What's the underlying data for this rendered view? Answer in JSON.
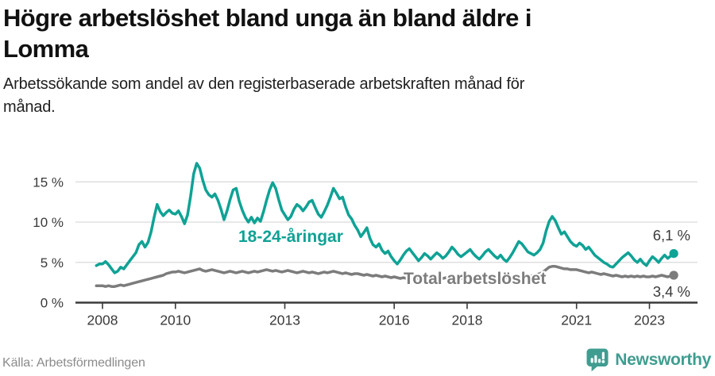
{
  "header": {
    "title_lines": [
      "Högre arbetslöshet bland unga än bland äldre i",
      "Lomma"
    ],
    "subtitle_lines": [
      "Arbetssökande som andel av den registerbaserade arbetskraften månad för",
      "månad."
    ]
  },
  "chart_data": {
    "type": "line",
    "title": "Högre arbetslöshet bland unga än bland äldre i Lomma",
    "subtitle": "Arbetssökande som andel av den registerbaserade arbetskraften månad för månad.",
    "x_unit": "month",
    "x_range": [
      "2007-11",
      "2023-09"
    ],
    "x_ticks": [
      2008,
      2010,
      2013,
      2016,
      2018,
      2021,
      2023
    ],
    "y_ticks": [
      0,
      5,
      10,
      15
    ],
    "y_suffix": " %",
    "ylim": [
      0,
      18
    ],
    "grid": "horizontal",
    "legend_position": "inline-labels",
    "series": [
      {
        "name": "18-24-åringar",
        "color": "#0fa295",
        "end_label": "6,1 %",
        "end_value": 6.1,
        "values": [
          4.6,
          4.8,
          4.8,
          5.1,
          4.7,
          4.2,
          3.7,
          3.9,
          4.4,
          4.2,
          4.7,
          5.2,
          5.7,
          6.2,
          7.2,
          7.6,
          6.9,
          7.5,
          8.8,
          10.6,
          12.2,
          11.3,
          10.8,
          11.2,
          11.5,
          11.1,
          11.0,
          11.4,
          10.7,
          9.8,
          10.9,
          13.2,
          16.0,
          17.3,
          16.7,
          15.2,
          14.0,
          13.4,
          13.1,
          13.5,
          12.7,
          11.6,
          10.3,
          11.4,
          12.8,
          14.0,
          14.2,
          12.6,
          11.5,
          10.6,
          10.0,
          10.6,
          9.9,
          10.5,
          10.1,
          11.3,
          12.7,
          14.0,
          14.9,
          14.2,
          12.8,
          11.5,
          10.9,
          10.3,
          10.7,
          11.6,
          12.2,
          11.9,
          11.4,
          11.9,
          12.5,
          12.7,
          11.8,
          11.0,
          10.6,
          11.3,
          12.1,
          13.1,
          14.2,
          13.6,
          12.9,
          13.1,
          11.9,
          10.9,
          10.4,
          9.6,
          9.0,
          8.2,
          8.7,
          9.3,
          8.0,
          7.2,
          6.9,
          7.3,
          6.5,
          6.1,
          6.4,
          5.7,
          5.2,
          4.8,
          5.3,
          5.9,
          6.4,
          6.7,
          6.2,
          5.7,
          5.2,
          5.6,
          6.1,
          5.8,
          5.4,
          5.8,
          6.2,
          5.9,
          5.5,
          5.8,
          6.3,
          6.9,
          6.5,
          6.0,
          5.7,
          6.0,
          6.3,
          6.6,
          6.1,
          5.7,
          5.4,
          5.8,
          6.3,
          6.6,
          6.2,
          5.8,
          5.5,
          5.9,
          5.4,
          5.1,
          5.6,
          6.2,
          6.9,
          7.6,
          7.3,
          6.8,
          6.3,
          6.1,
          5.9,
          6.2,
          6.6,
          7.4,
          8.9,
          10.1,
          10.7,
          10.2,
          9.3,
          8.5,
          8.8,
          8.2,
          7.6,
          7.2,
          7.0,
          7.4,
          7.1,
          6.6,
          6.9,
          6.4,
          5.9,
          5.6,
          5.3,
          5.0,
          4.8,
          4.5,
          4.4,
          4.8,
          5.2,
          5.6,
          5.9,
          6.2,
          5.8,
          5.3,
          5.0,
          5.4,
          4.9,
          4.6,
          5.2,
          5.7,
          5.4,
          5.0,
          5.5,
          5.9,
          5.5,
          5.8,
          6.1
        ]
      },
      {
        "name": "Total arbetslöshet",
        "color": "#7c7c7c",
        "end_label": "3,4 %",
        "end_value": 3.4,
        "values": [
          2.1,
          2.1,
          2.1,
          2.0,
          2.1,
          2.0,
          2.0,
          2.1,
          2.2,
          2.1,
          2.2,
          2.3,
          2.4,
          2.5,
          2.6,
          2.7,
          2.8,
          2.9,
          3.0,
          3.1,
          3.2,
          3.3,
          3.4,
          3.6,
          3.7,
          3.8,
          3.8,
          3.9,
          3.8,
          3.7,
          3.8,
          3.9,
          4.0,
          4.1,
          4.2,
          4.0,
          3.9,
          4.0,
          4.1,
          4.0,
          3.9,
          3.8,
          3.7,
          3.8,
          3.9,
          3.8,
          3.7,
          3.8,
          3.9,
          3.8,
          3.7,
          3.8,
          3.9,
          3.8,
          3.9,
          4.0,
          4.1,
          4.0,
          3.9,
          4.0,
          3.9,
          3.8,
          3.9,
          4.0,
          3.9,
          3.8,
          3.7,
          3.8,
          3.9,
          3.8,
          3.7,
          3.8,
          3.7,
          3.6,
          3.7,
          3.8,
          3.7,
          3.8,
          3.9,
          3.8,
          3.7,
          3.6,
          3.7,
          3.6,
          3.5,
          3.6,
          3.6,
          3.5,
          3.4,
          3.5,
          3.4,
          3.3,
          3.4,
          3.3,
          3.2,
          3.3,
          3.2,
          3.1,
          3.2,
          3.1,
          3.0,
          3.1,
          3.0,
          2.9,
          3.0,
          3.1,
          3.0,
          2.9,
          3.0,
          3.1,
          3.0,
          3.1,
          3.0,
          2.9,
          3.0,
          3.1,
          3.0,
          3.1,
          3.0,
          2.9,
          3.0,
          2.9,
          3.0,
          2.9,
          2.8,
          2.9,
          3.0,
          2.9,
          2.8,
          2.9,
          3.0,
          2.9,
          3.0,
          3.1,
          3.0,
          3.1,
          3.2,
          3.1,
          3.2,
          3.3,
          3.2,
          3.3,
          3.2,
          3.3,
          3.4,
          3.5,
          3.6,
          3.8,
          4.1,
          4.4,
          4.5,
          4.5,
          4.4,
          4.3,
          4.2,
          4.2,
          4.1,
          4.1,
          4.1,
          4.0,
          3.9,
          3.8,
          3.7,
          3.8,
          3.7,
          3.6,
          3.5,
          3.6,
          3.5,
          3.4,
          3.3,
          3.4,
          3.3,
          3.2,
          3.3,
          3.2,
          3.3,
          3.2,
          3.3,
          3.2,
          3.3,
          3.2,
          3.2,
          3.3,
          3.2,
          3.3,
          3.4,
          3.3,
          3.2,
          3.3,
          3.4
        ]
      }
    ]
  },
  "footer": {
    "source": "Källa: Arbetsförmedlingen",
    "brand": "Newsworthy",
    "logo_icon": "bar-chart-speech-bubble-icon"
  },
  "colors": {
    "accent_teal": "#0fa295",
    "total_gray": "#7c7c7c",
    "grid": "#dadada",
    "axis": "#3a3a3a",
    "tick_text": "#3a3a3a",
    "title_text": "#111111",
    "source_text": "#8b8b8b",
    "logo_teal": "#3f9d90"
  }
}
